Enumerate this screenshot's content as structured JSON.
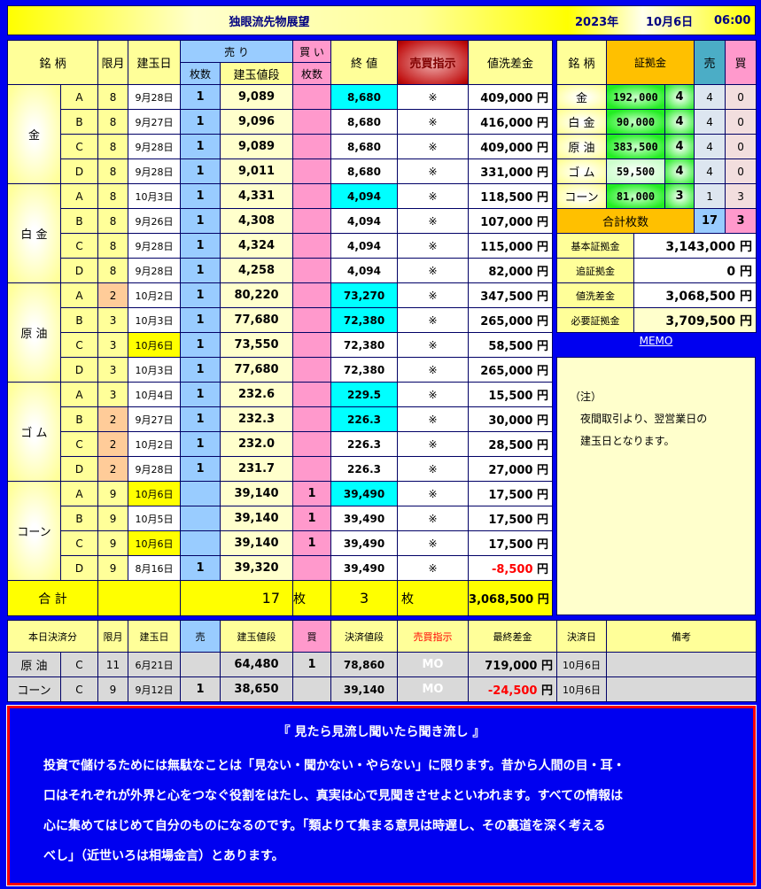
{
  "header": {
    "title": "独眼流先物展望",
    "year": "2023年",
    "date": "10月6日",
    "time": "06:00"
  },
  "main": {
    "headers": {
      "name": "銘 柄",
      "month": "限月",
      "date": "建玉日",
      "sell": "売 り",
      "buy": "買 い",
      "sell_qty": "枚数",
      "price": "建玉値段",
      "buy_qty": "枚数",
      "close": "終 値",
      "signal": "売買指示",
      "diff": "値洗差金"
    },
    "groups": [
      {
        "name": "金",
        "rows": [
          {
            "sub": "A",
            "month": "8",
            "date": "9月28日",
            "sell": "1",
            "price": "9,089",
            "buy": "",
            "close": "8,680",
            "close_hl": true,
            "signal": "※",
            "diff": "409,000",
            "unit": "円"
          },
          {
            "sub": "B",
            "month": "8",
            "date": "9月27日",
            "sell": "1",
            "price": "9,096",
            "buy": "",
            "close": "8,680",
            "signal": "※",
            "diff": "416,000",
            "unit": "円"
          },
          {
            "sub": "C",
            "month": "8",
            "date": "9月28日",
            "sell": "1",
            "price": "9,089",
            "buy": "",
            "close": "8,680",
            "signal": "※",
            "diff": "409,000",
            "unit": "円"
          },
          {
            "sub": "D",
            "month": "8",
            "date": "9月28日",
            "sell": "1",
            "price": "9,011",
            "buy": "",
            "close": "8,680",
            "signal": "※",
            "diff": "331,000",
            "unit": "円"
          }
        ]
      },
      {
        "name": "白 金",
        "rows": [
          {
            "sub": "A",
            "month": "8",
            "date": "10月3日",
            "sell": "1",
            "price": "4,331",
            "buy": "",
            "close": "4,094",
            "close_hl": true,
            "signal": "※",
            "diff": "118,500",
            "unit": "円"
          },
          {
            "sub": "B",
            "month": "8",
            "date": "9月26日",
            "sell": "1",
            "price": "4,308",
            "buy": "",
            "close": "4,094",
            "signal": "※",
            "diff": "107,000",
            "unit": "円"
          },
          {
            "sub": "C",
            "month": "8",
            "date": "9月28日",
            "sell": "1",
            "price": "4,324",
            "buy": "",
            "close": "4,094",
            "signal": "※",
            "diff": "115,000",
            "unit": "円"
          },
          {
            "sub": "D",
            "month": "8",
            "date": "9月28日",
            "sell": "1",
            "price": "4,258",
            "buy": "",
            "close": "4,094",
            "signal": "※",
            "diff": "82,000",
            "unit": "円"
          }
        ]
      },
      {
        "name": "原 油",
        "rows": [
          {
            "sub": "A",
            "month": "2",
            "month_hl": true,
            "date": "10月2日",
            "sell": "1",
            "price": "80,220",
            "buy": "",
            "close": "73,270",
            "close_hl": true,
            "signal": "※",
            "diff": "347,500",
            "unit": "円"
          },
          {
            "sub": "B",
            "month": "3",
            "date": "10月3日",
            "sell": "1",
            "price": "77,680",
            "buy": "",
            "close": "72,380",
            "close_hl": true,
            "signal": "※",
            "diff": "265,000",
            "unit": "円"
          },
          {
            "sub": "C",
            "month": "3",
            "date": "10月6日",
            "date_hl": true,
            "sell": "1",
            "price": "73,550",
            "buy": "",
            "close": "72,380",
            "signal": "※",
            "diff": "58,500",
            "unit": "円"
          },
          {
            "sub": "D",
            "month": "3",
            "date": "10月3日",
            "sell": "1",
            "price": "77,680",
            "buy": "",
            "close": "72,380",
            "signal": "※",
            "diff": "265,000",
            "unit": "円"
          }
        ]
      },
      {
        "name": "ゴ ム",
        "rows": [
          {
            "sub": "A",
            "month": "3",
            "date": "10月4日",
            "sell": "1",
            "price": "232.6",
            "buy": "",
            "close": "229.5",
            "close_hl": true,
            "signal": "※",
            "diff": "15,500",
            "unit": "円"
          },
          {
            "sub": "B",
            "month": "2",
            "month_hl": true,
            "date": "9月27日",
            "sell": "1",
            "price": "232.3",
            "buy": "",
            "close": "226.3",
            "close_hl": true,
            "signal": "※",
            "diff": "30,000",
            "unit": "円"
          },
          {
            "sub": "C",
            "month": "2",
            "month_hl": true,
            "date": "10月2日",
            "sell": "1",
            "price": "232.0",
            "buy": "",
            "close": "226.3",
            "signal": "※",
            "diff": "28,500",
            "unit": "円"
          },
          {
            "sub": "D",
            "month": "2",
            "month_hl": true,
            "date": "9月28日",
            "sell": "1",
            "price": "231.7",
            "buy": "",
            "close": "226.3",
            "signal": "※",
            "diff": "27,000",
            "unit": "円"
          }
        ]
      },
      {
        "name": "コーン",
        "rows": [
          {
            "sub": "A",
            "month": "9",
            "date": "10月6日",
            "date_hl": true,
            "sell": "",
            "price": "39,140",
            "buy": "1",
            "close": "39,490",
            "close_hl": true,
            "signal": "※",
            "diff": "17,500",
            "unit": "円"
          },
          {
            "sub": "B",
            "month": "9",
            "date": "10月5日",
            "sell": "",
            "price": "39,140",
            "buy": "1",
            "close": "39,490",
            "signal": "※",
            "diff": "17,500",
            "unit": "円"
          },
          {
            "sub": "C",
            "month": "9",
            "date": "10月6日",
            "date_hl": true,
            "sell": "",
            "price": "39,140",
            "buy": "1",
            "close": "39,490",
            "signal": "※",
            "diff": "17,500",
            "unit": "円"
          },
          {
            "sub": "D",
            "month": "9",
            "date": "8月16日",
            "sell": "1",
            "price": "39,320",
            "buy": "",
            "close": "39,490",
            "signal": "※",
            "diff": "-8,500",
            "negative": true,
            "unit": "円"
          }
        ]
      }
    ],
    "total": {
      "label": "合 計",
      "sell": "17",
      "sell_unit": "枚",
      "buy": "3",
      "buy_unit": "枚",
      "diff": "3,068,500",
      "unit": "円"
    }
  },
  "margin": {
    "headers": {
      "name": "銘 柄",
      "margin": "証拠金",
      "sell": "売",
      "buy": "買"
    },
    "rows": [
      {
        "name": "金",
        "margin": "192,000",
        "count": "4",
        "sell": "4",
        "buy": "0"
      },
      {
        "name": "白 金",
        "margin": "90,000",
        "count": "4",
        "sell": "4",
        "buy": "0"
      },
      {
        "name": "原 油",
        "margin": "383,500",
        "count": "4",
        "sell": "4",
        "buy": "0"
      },
      {
        "name": "ゴ ム",
        "margin": "59,500",
        "count": "4",
        "sell": "4",
        "buy": "0",
        "pale": true
      },
      {
        "name": "コーン",
        "margin": "81,000",
        "count": "3",
        "sell": "1",
        "buy": "3"
      }
    ],
    "total": {
      "label": "合計枚数",
      "sell": "17",
      "buy": "3"
    },
    "summary": [
      {
        "label": "基本証拠金",
        "value": "3,143,000",
        "unit": "円"
      },
      {
        "label": "追証拠金",
        "value": "0",
        "unit": "円"
      },
      {
        "label": "値洗差金",
        "value": "3,068,500",
        "unit": "円"
      },
      {
        "label": "必要証拠金",
        "value": "3,709,500",
        "unit": "円",
        "highlight": true
      }
    ]
  },
  "memo": {
    "link": "MEMO",
    "lines": [
      "（注）",
      "　夜間取引より、翌営業日の",
      "　建玉日となります。"
    ]
  },
  "settled": {
    "headers": {
      "name": "本日決済分",
      "month": "限月",
      "date": "建玉日",
      "sell": "売",
      "price": "建玉値段",
      "buy": "買",
      "settle_price": "決済値段",
      "signal": "売買指示",
      "final": "最終差金",
      "settle_date": "決済日",
      "note": "備考"
    },
    "rows": [
      {
        "name": "原 油",
        "sub": "C",
        "month": "11",
        "date": "6月21日",
        "sell": "",
        "price": "64,480",
        "buy": "1",
        "settle_price": "78,860",
        "signal": "MO",
        "final": "719,000",
        "unit": "円",
        "settle_date": "10月6日",
        "note": ""
      },
      {
        "name": "コーン",
        "sub": "C",
        "month": "9",
        "date": "9月12日",
        "sell": "1",
        "price": "38,650",
        "buy": "",
        "settle_price": "39,140",
        "signal": "MO",
        "final": "-24,500",
        "negative": true,
        "unit": "円",
        "settle_date": "10月6日",
        "note": ""
      }
    ]
  },
  "quote": {
    "title": "『 見たら見流し聞いたら聞き流し 』",
    "lines": [
      "投資で儲けるためには無駄なことは「見ない・聞かない・やらない」に限ります。昔から人間の目・耳・",
      "口はそれぞれが外界と心をつなぐ役割をはたし、真実は心で見聞きさせよといわれます。すべての情報は",
      "心に集めてはじめて自分のものになるのです。「類よりて集まる意見は時遅し、その裏道を深く考える",
      "べし」（近世いろは相場金言）とあります。"
    ]
  },
  "colors": {
    "background": "#0000f0",
    "sell": "#99ccff",
    "buy": "#ff99cc",
    "highlight_close": "#00ffff",
    "negative": "#ff0000",
    "accent": "#ffc000"
  }
}
